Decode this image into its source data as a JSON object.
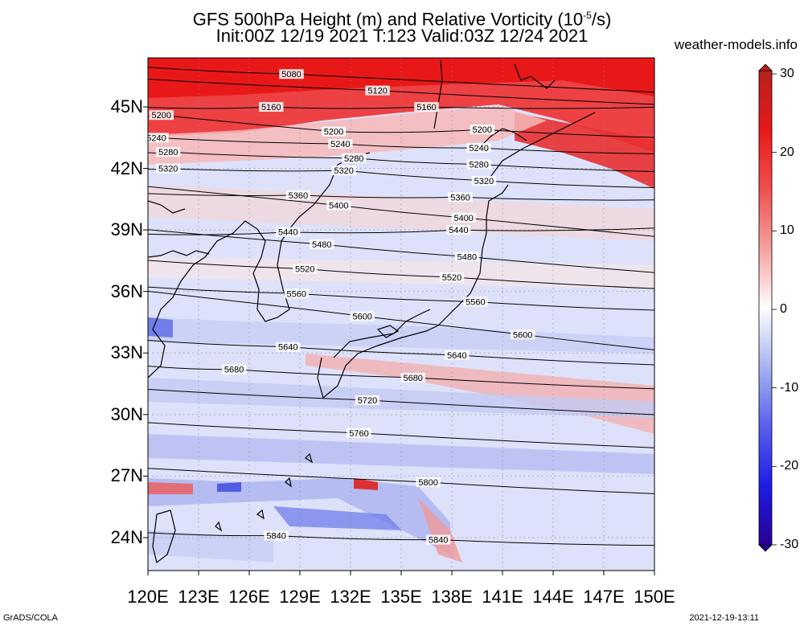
{
  "title": {
    "line1_main": "GFS 500hPa Height (m) and Relative Vorticity (10",
    "line1_exp": "-5",
    "line1_tail": "/s)",
    "line2": "Init:00Z 12/19 2021 T:123 Valid:03Z 12/24 2021"
  },
  "site": "weather-models.info",
  "credit": "GrADS/COLA",
  "timestamp": "2021-12-19-13:11",
  "x_ticks": [
    "120E",
    "123E",
    "126E",
    "129E",
    "132E",
    "135E",
    "138E",
    "141E",
    "144E",
    "147E",
    "150E"
  ],
  "y_ticks": [
    "45N",
    "42N",
    "39N",
    "36N",
    "33N",
    "30N",
    "27N",
    "24N"
  ],
  "colorbar": {
    "labels": [
      "30",
      "20",
      "10",
      "0",
      "-10",
      "-20",
      "-30"
    ],
    "colors": [
      "#b8201e",
      "#e81818",
      "#f05050",
      "#f5a0a0",
      "#ffffff",
      "#a8b4f0",
      "#5860ee",
      "#1c1ce6",
      "#2a0096"
    ]
  },
  "contours": [
    {
      "value": "5080",
      "labels": [
        {
          "lon": 128.5,
          "lat": 46.6
        }
      ]
    },
    {
      "value": "5120",
      "labels": [
        {
          "lon": 133.6,
          "lat": 45.8
        }
      ]
    },
    {
      "value": "5160",
      "labels": [
        {
          "lon": 127.3,
          "lat": 45.0
        },
        {
          "lon": 136.5,
          "lat": 45.0
        }
      ]
    },
    {
      "value": "5200",
      "labels": [
        {
          "lon": 120.8,
          "lat": 44.6
        },
        {
          "lon": 131.0,
          "lat": 43.8
        },
        {
          "lon": 139.8,
          "lat": 43.9
        }
      ]
    },
    {
      "value": "5240",
      "labels": [
        {
          "lon": 120.5,
          "lat": 43.5
        },
        {
          "lon": 131.4,
          "lat": 43.2
        },
        {
          "lon": 139.6,
          "lat": 43.0
        }
      ]
    },
    {
      "value": "5280",
      "labels": [
        {
          "lon": 121.2,
          "lat": 42.8
        },
        {
          "lon": 132.2,
          "lat": 42.5
        },
        {
          "lon": 139.6,
          "lat": 42.2
        }
      ]
    },
    {
      "value": "5320",
      "labels": [
        {
          "lon": 121.2,
          "lat": 42.0
        },
        {
          "lon": 131.6,
          "lat": 41.9
        },
        {
          "lon": 139.9,
          "lat": 41.4
        }
      ]
    },
    {
      "value": "5360",
      "labels": [
        {
          "lon": 128.9,
          "lat": 40.7
        },
        {
          "lon": 138.5,
          "lat": 40.6
        }
      ]
    },
    {
      "value": "5400",
      "labels": [
        {
          "lon": 131.3,
          "lat": 40.2
        },
        {
          "lon": 138.7,
          "lat": 39.6
        }
      ]
    },
    {
      "value": "5440",
      "labels": [
        {
          "lon": 128.3,
          "lat": 38.9
        },
        {
          "lon": 138.4,
          "lat": 39.0
        }
      ]
    },
    {
      "value": "5480",
      "labels": [
        {
          "lon": 130.3,
          "lat": 38.3
        },
        {
          "lon": 138.9,
          "lat": 37.7
        }
      ]
    },
    {
      "value": "5520",
      "labels": [
        {
          "lon": 129.3,
          "lat": 37.1
        },
        {
          "lon": 138.0,
          "lat": 36.7
        }
      ]
    },
    {
      "value": "5560",
      "labels": [
        {
          "lon": 128.8,
          "lat": 35.9
        },
        {
          "lon": 139.4,
          "lat": 35.5
        }
      ]
    },
    {
      "value": "5600",
      "labels": [
        {
          "lon": 132.7,
          "lat": 34.8
        },
        {
          "lon": 142.2,
          "lat": 33.9
        }
      ]
    },
    {
      "value": "5640",
      "labels": [
        {
          "lon": 128.3,
          "lat": 33.3
        },
        {
          "lon": 138.3,
          "lat": 32.9
        }
      ]
    },
    {
      "value": "5680",
      "labels": [
        {
          "lon": 125.1,
          "lat": 32.2
        },
        {
          "lon": 135.7,
          "lat": 31.8
        }
      ]
    },
    {
      "value": "5720",
      "labels": [
        {
          "lon": 133.0,
          "lat": 30.7
        }
      ]
    },
    {
      "value": "5760",
      "labels": [
        {
          "lon": 132.5,
          "lat": 29.1
        }
      ]
    },
    {
      "value": "5800",
      "labels": [
        {
          "lon": 136.6,
          "lat": 26.7
        }
      ]
    },
    {
      "value": "5840",
      "labels": [
        {
          "lon": 127.6,
          "lat": 24.1
        },
        {
          "lon": 137.2,
          "lat": 23.9
        }
      ]
    }
  ]
}
